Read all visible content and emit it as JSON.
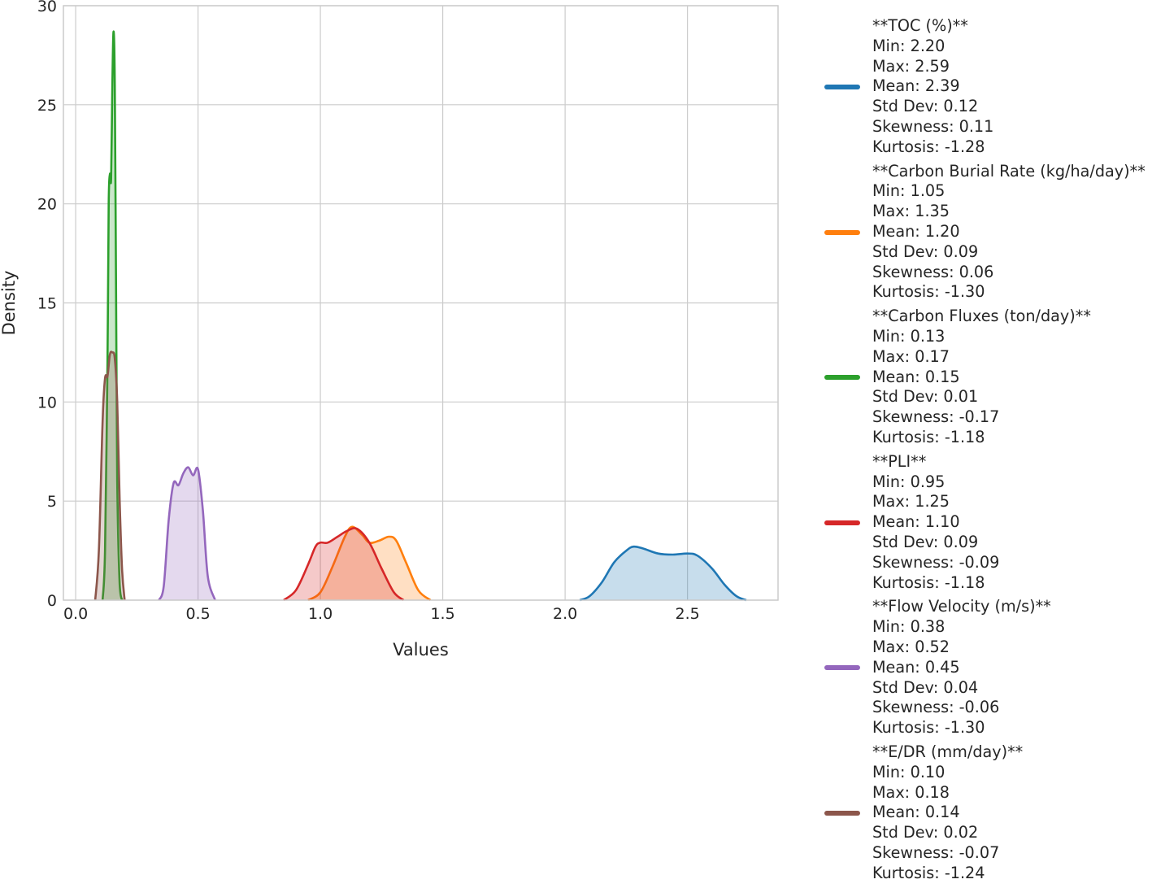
{
  "chart_data": {
    "type": "area",
    "xlabel": "Values",
    "ylabel": "Density",
    "xlim": [
      -0.05,
      2.87
    ],
    "ylim": [
      0,
      30
    ],
    "xticks": [
      "0.0",
      "0.5",
      "1.0",
      "1.5",
      "2.0",
      "2.5"
    ],
    "yticks": [
      "0",
      "5",
      "10",
      "15",
      "20",
      "25",
      "30"
    ],
    "grid": true,
    "legend_position": "right-outside",
    "series": [
      {
        "name": "**TOC (%)**",
        "color": "#1f77b4",
        "stats": [
          "Min: 2.20",
          "Max: 2.59",
          "Mean: 2.39",
          "Std Dev: 0.12",
          "Skewness: 0.11",
          "Kurtosis: -1.28"
        ],
        "points": [
          [
            2.06,
            0
          ],
          [
            2.1,
            0.2
          ],
          [
            2.15,
            0.9
          ],
          [
            2.2,
            1.9
          ],
          [
            2.25,
            2.5
          ],
          [
            2.28,
            2.7
          ],
          [
            2.32,
            2.6
          ],
          [
            2.38,
            2.35
          ],
          [
            2.44,
            2.3
          ],
          [
            2.5,
            2.35
          ],
          [
            2.54,
            2.25
          ],
          [
            2.6,
            1.6
          ],
          [
            2.65,
            0.8
          ],
          [
            2.7,
            0.2
          ],
          [
            2.74,
            0
          ]
        ]
      },
      {
        "name": "**Carbon Burial Rate (kg/ha/day)**",
        "color": "#ff7f0e",
        "stats": [
          "Min: 1.05",
          "Max: 1.35",
          "Mean: 1.20",
          "Std Dev: 0.09",
          "Skewness: 0.06",
          "Kurtosis: -1.30"
        ],
        "points": [
          [
            0.95,
            0
          ],
          [
            1.0,
            0.4
          ],
          [
            1.05,
            1.7
          ],
          [
            1.1,
            3.2
          ],
          [
            1.13,
            3.7
          ],
          [
            1.17,
            3.3
          ],
          [
            1.2,
            2.9
          ],
          [
            1.24,
            3.0
          ],
          [
            1.28,
            3.2
          ],
          [
            1.31,
            3.0
          ],
          [
            1.35,
            1.9
          ],
          [
            1.4,
            0.5
          ],
          [
            1.45,
            0
          ]
        ]
      },
      {
        "name": "**Carbon Fluxes (ton/day)**",
        "color": "#2ca02c",
        "stats": [
          "Min: 0.13",
          "Max: 0.17",
          "Mean: 0.15",
          "Std Dev: 0.01",
          "Skewness: -0.17",
          "Kurtosis: -1.18"
        ],
        "points": [
          [
            0.11,
            0
          ],
          [
            0.12,
            2.5
          ],
          [
            0.13,
            12
          ],
          [
            0.135,
            20
          ],
          [
            0.14,
            21.5
          ],
          [
            0.145,
            21.3
          ],
          [
            0.15,
            26
          ],
          [
            0.155,
            28.7
          ],
          [
            0.16,
            26
          ],
          [
            0.165,
            16
          ],
          [
            0.17,
            6
          ],
          [
            0.18,
            0.8
          ],
          [
            0.19,
            0
          ]
        ]
      },
      {
        "name": "**PLI**",
        "color": "#d62728",
        "stats": [
          "Min: 0.95",
          "Max: 1.25",
          "Mean: 1.10",
          "Std Dev: 0.09",
          "Skewness: -0.09",
          "Kurtosis: -1.18"
        ],
        "points": [
          [
            0.85,
            0
          ],
          [
            0.9,
            0.5
          ],
          [
            0.95,
            1.8
          ],
          [
            0.98,
            2.7
          ],
          [
            1.0,
            2.9
          ],
          [
            1.03,
            2.9
          ],
          [
            1.07,
            3.2
          ],
          [
            1.11,
            3.5
          ],
          [
            1.15,
            3.6
          ],
          [
            1.2,
            2.9
          ],
          [
            1.25,
            1.6
          ],
          [
            1.3,
            0.4
          ],
          [
            1.34,
            0
          ]
        ]
      },
      {
        "name": "**Flow Velocity (m/s)**",
        "color": "#9467bd",
        "stats": [
          "Min: 0.38",
          "Max: 0.52",
          "Mean: 0.45",
          "Std Dev: 0.04",
          "Skewness: -0.06",
          "Kurtosis: -1.30"
        ],
        "points": [
          [
            0.34,
            0
          ],
          [
            0.36,
            0.7
          ],
          [
            0.38,
            4.0
          ],
          [
            0.4,
            5.9
          ],
          [
            0.42,
            5.8
          ],
          [
            0.44,
            6.4
          ],
          [
            0.46,
            6.7
          ],
          [
            0.48,
            6.3
          ],
          [
            0.5,
            6.6
          ],
          [
            0.52,
            4.5
          ],
          [
            0.54,
            1.2
          ],
          [
            0.57,
            0
          ]
        ]
      },
      {
        "name": "**E/DR (mm/day)**",
        "color": "#8c564b",
        "stats": [
          "Min: 0.10",
          "Max: 0.18",
          "Mean: 0.14",
          "Std Dev: 0.02",
          "Skewness: -0.07",
          "Kurtosis: -1.24"
        ],
        "points": [
          [
            0.08,
            0
          ],
          [
            0.095,
            2.5
          ],
          [
            0.11,
            9
          ],
          [
            0.12,
            11.2
          ],
          [
            0.13,
            11.3
          ],
          [
            0.14,
            12.4
          ],
          [
            0.15,
            12.5
          ],
          [
            0.16,
            12.2
          ],
          [
            0.17,
            10
          ],
          [
            0.18,
            5
          ],
          [
            0.19,
            1.5
          ],
          [
            0.2,
            0
          ]
        ]
      }
    ]
  }
}
